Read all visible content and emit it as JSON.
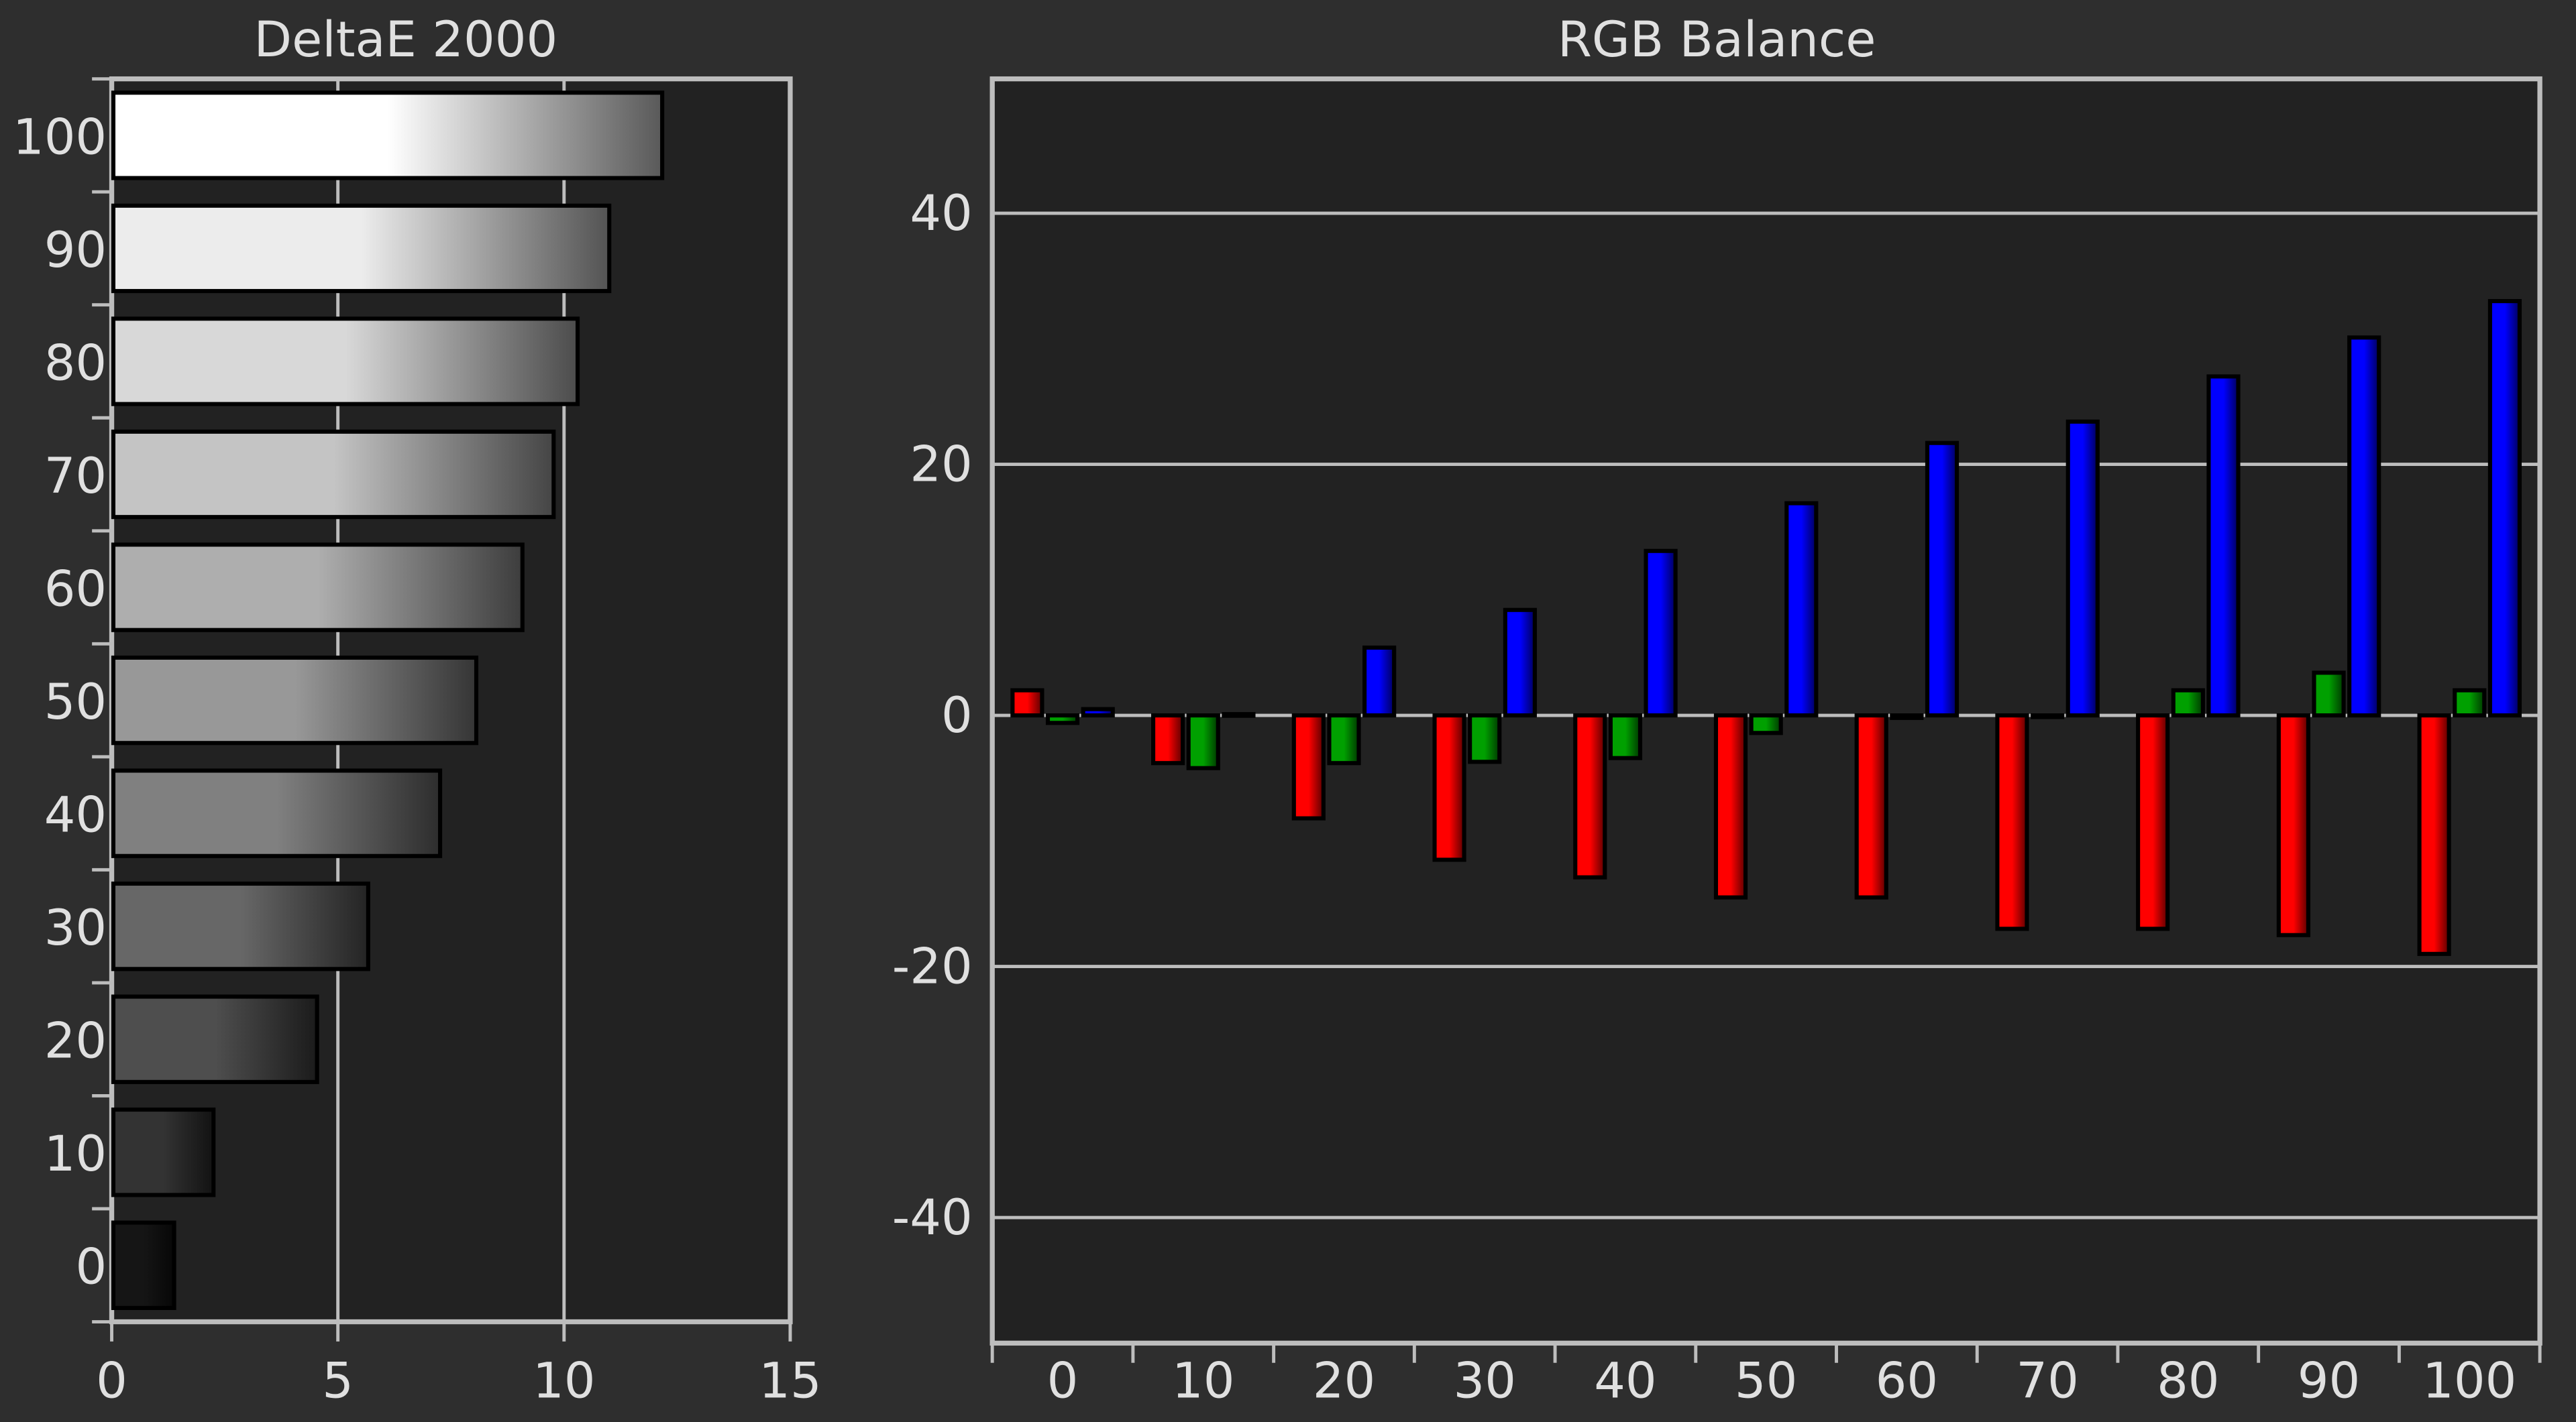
{
  "chart_data": [
    {
      "type": "barh",
      "title": "DeltaE 2000",
      "categories": [
        "100",
        "90",
        "80",
        "70",
        "60",
        "50",
        "40",
        "30",
        "20",
        "10",
        "0"
      ],
      "values": [
        12.17,
        11.0,
        10.3,
        9.77,
        9.08,
        8.06,
        7.26,
        5.67,
        4.54,
        2.25,
        1.38
      ],
      "colors": [
        "#ffffff",
        "#ececec",
        "#d8d8d8",
        "#c4c4c4",
        "#aeaeae",
        "#989898",
        "#808080",
        "#676767",
        "#4e4e4e",
        "#333333",
        "#151515"
      ],
      "xlim": [
        0,
        15
      ],
      "xticks": [
        0,
        5,
        10,
        15
      ],
      "grid": true
    },
    {
      "type": "bar",
      "title": "RGB Balance",
      "categories": [
        "0",
        "10",
        "20",
        "30",
        "40",
        "50",
        "60",
        "70",
        "80",
        "90",
        "100"
      ],
      "series": [
        {
          "name": "Red",
          "color": "#ff0000",
          "values": [
            2.0,
            -3.8,
            -8.2,
            -11.5,
            -12.9,
            -14.5,
            -14.5,
            -17.0,
            -17.0,
            -17.5,
            -19.0
          ]
        },
        {
          "name": "Green",
          "color": "#00a000",
          "values": [
            -0.6,
            -4.2,
            -3.8,
            -3.7,
            -3.4,
            -1.4,
            -0.2,
            0,
            2.0,
            3.4,
            2.0
          ]
        },
        {
          "name": "Blue",
          "color": "#0000ff",
          "values": [
            0.5,
            0.1,
            5.4,
            8.4,
            13.1,
            16.9,
            21.7,
            23.4,
            27.0,
            30.1,
            33.0
          ]
        }
      ],
      "ylim": [
        -50,
        50.7
      ],
      "yticks": [
        -40,
        -20,
        0,
        20,
        40
      ],
      "grid": true
    }
  ]
}
